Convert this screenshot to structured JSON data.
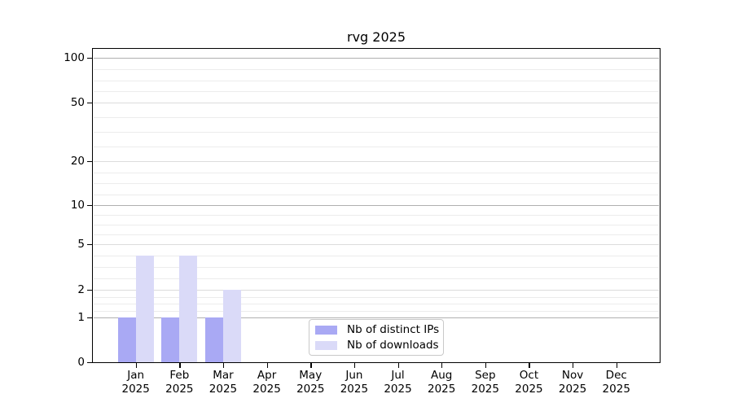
{
  "title": "rvg 2025",
  "chart_data": {
    "type": "bar",
    "title": "rvg 2025",
    "categories": [
      "Jan",
      "Feb",
      "Mar",
      "Apr",
      "May",
      "Jun",
      "Jul",
      "Aug",
      "Sep",
      "Oct",
      "Nov",
      "Dec"
    ],
    "year_label": "2025",
    "series": [
      {
        "name": "Nb of distinct IPs",
        "key": "distinct-ips",
        "color": "#a9a9f4",
        "values": [
          1,
          1,
          1,
          0,
          0,
          0,
          0,
          0,
          0,
          0,
          0,
          0
        ]
      },
      {
        "name": "Nb of downloads",
        "key": "downloads",
        "color": "#dadaf8",
        "values": [
          4,
          4,
          2,
          0,
          0,
          0,
          0,
          0,
          0,
          0,
          0,
          0
        ]
      }
    ],
    "y_ticks": [
      100,
      50,
      20,
      10,
      5,
      2,
      1,
      0
    ],
    "y_scale": "log between 1 and 100, linear segment from 0 to 1",
    "ylim": [
      0,
      115
    ],
    "grid": true,
    "legend_position": "lower center"
  }
}
